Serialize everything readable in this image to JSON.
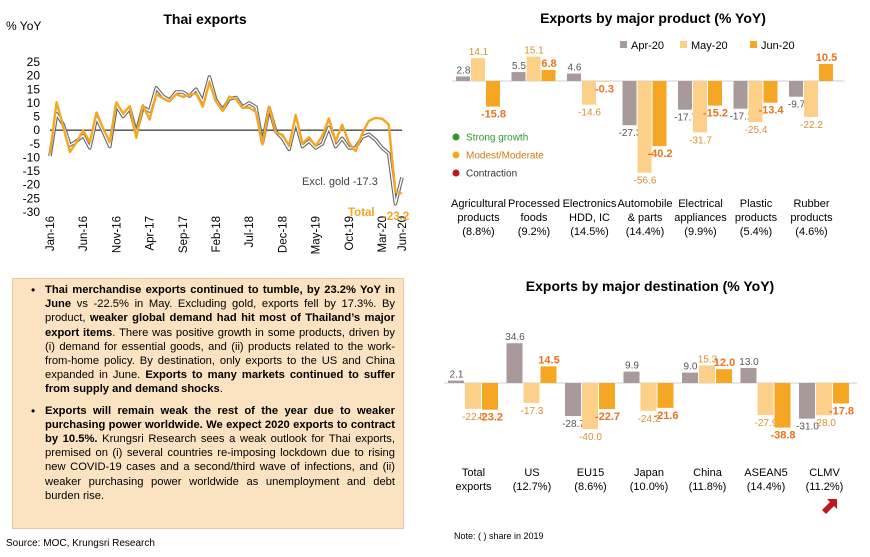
{
  "chart_data": [
    {
      "type": "line",
      "title": "Thai exports",
      "ylabel": "% YoY",
      "ylim": [
        -30,
        25
      ],
      "yticks": [
        25,
        20,
        15,
        10,
        5,
        0,
        -5,
        -10,
        -15,
        -20,
        -25,
        -30
      ],
      "xticks": [
        "Jan-16",
        "Jun-16",
        "Nov-16",
        "Apr-17",
        "Sep-17",
        "Feb-18",
        "Jul-18",
        "Dec-18",
        "May-19",
        "Oct-19",
        "Mar-20",
        "Jun-20"
      ],
      "x": [
        "Jan-16",
        "Feb-16",
        "Mar-16",
        "Apr-16",
        "May-16",
        "Jun-16",
        "Jul-16",
        "Aug-16",
        "Sep-16",
        "Oct-16",
        "Nov-16",
        "Dec-16",
        "Jan-17",
        "Feb-17",
        "Mar-17",
        "Apr-17",
        "May-17",
        "Jun-17",
        "Jul-17",
        "Aug-17",
        "Sep-17",
        "Oct-17",
        "Nov-17",
        "Dec-17",
        "Jan-18",
        "Feb-18",
        "Mar-18",
        "Apr-18",
        "May-18",
        "Jun-18",
        "Jul-18",
        "Aug-18",
        "Sep-18",
        "Oct-18",
        "Nov-18",
        "Dec-18",
        "Jan-19",
        "Feb-19",
        "Mar-19",
        "Apr-19",
        "May-19",
        "Jun-19",
        "Jul-19",
        "Aug-19",
        "Sep-19",
        "Oct-19",
        "Nov-19",
        "Dec-19",
        "Jan-20",
        "Feb-20",
        "Mar-20",
        "Apr-20",
        "May-20",
        "Jun-20"
      ],
      "series": [
        {
          "name": "Total",
          "color": "#f5a623",
          "values": [
            -8.9,
            10.3,
            1.1,
            -8.0,
            -4.4,
            -0.1,
            -4.4,
            6.5,
            0.7,
            -4.3,
            10.2,
            6.1,
            8.8,
            -2.8,
            9.2,
            3.9,
            13.2,
            11.7,
            10.5,
            13.2,
            12.2,
            13.0,
            13.4,
            8.6,
            17.6,
            10.5,
            7.1,
            12.3,
            11.4,
            8.2,
            8.3,
            6.7,
            -5.2,
            8.7,
            -0.9,
            -1.7,
            -5.7,
            5.6,
            -4.9,
            -2.6,
            -5.8,
            -2.1,
            4.3,
            -4.0,
            2.0,
            -4.5,
            -7.7,
            -1.3,
            3.4,
            4.5,
            4.2,
            2.1,
            -22.5,
            -23.2
          ]
        },
        {
          "name": "Excl. gold",
          "color": "#555555",
          "values": [
            -9.5,
            6.0,
            2.0,
            -5.5,
            -4.0,
            -2.0,
            -6.5,
            4.5,
            -0.5,
            -6.0,
            9.0,
            5.0,
            8.0,
            -1.0,
            8.5,
            7.0,
            15.5,
            12.5,
            11.0,
            14.0,
            14.0,
            12.5,
            15.0,
            10.5,
            19.5,
            11.0,
            7.5,
            11.5,
            12.0,
            8.5,
            10.0,
            8.5,
            -4.5,
            8.0,
            -0.5,
            -3.0,
            -7.0,
            3.0,
            -6.0,
            -4.0,
            -6.5,
            -5.0,
            1.0,
            -6.0,
            -3.0,
            -6.5,
            -6.5,
            -2.5,
            -1.5,
            -3.5,
            -6.5,
            -8.5,
            -27.0,
            -17.3
          ]
        }
      ],
      "annotations": [
        {
          "label": "Excl. gold -17.3",
          "color": "#404040"
        },
        {
          "label": "Total",
          "value": "-23.2",
          "color": "#f5a623"
        }
      ]
    },
    {
      "type": "bar",
      "title": "Exports by major product (% YoY)",
      "legend": {
        "position": "top-right"
      },
      "categories": [
        "Agricultural products (8.8%)",
        "Processed foods (9.2%)",
        "Electronics HDD, IC (14.5%)",
        "Automobile & parts (14.4%)",
        "Electrical appliances (9.9%)",
        "Plastic products (5.4%)",
        "Rubber products (4.6%)"
      ],
      "category_lines": [
        [
          "Agricultural",
          "products",
          "(8.8%)"
        ],
        [
          "Processed",
          "foods",
          "(9.2%)"
        ],
        [
          "Electronics",
          "HDD, IC",
          "(14.5%)"
        ],
        [
          "Automobile",
          "& parts",
          "(14.4%)"
        ],
        [
          "Electrical",
          "appliances",
          "(9.9%)"
        ],
        [
          "Plastic",
          "products",
          "(5.4%)"
        ],
        [
          "Rubber",
          "products",
          "(4.6%)"
        ]
      ],
      "series": [
        {
          "name": "Apr-20",
          "color": "#a89a9a",
          "values": [
            2.8,
            5.5,
            4.6,
            -27.3,
            -17.7,
            -17.1,
            -9.7
          ],
          "labels": [
            "2.8",
            "5.5",
            "4.6",
            "-27.3",
            "-17.7",
            "-17.1",
            "-9.7"
          ]
        },
        {
          "name": "May-20",
          "color": "#fdd08a",
          "values": [
            14.1,
            15.1,
            -14.6,
            -56.6,
            -31.7,
            -25.4,
            -22.2
          ],
          "labels": [
            "14.1",
            "15.1",
            "-14.6",
            "-56.6",
            "-31.7",
            "-25.4",
            "-22.2"
          ]
        },
        {
          "name": "Jun-20",
          "color": "#f5a623",
          "values": [
            -15.8,
            6.8,
            -0.3,
            -40.2,
            -15.2,
            -13.4,
            10.5
          ],
          "labels": [
            "-15.8",
            "6.8",
            "-0.3",
            "-40.2",
            "-15.2",
            "-13.4",
            "10.5"
          ]
        }
      ],
      "status_legend": [
        {
          "label": "Strong growth",
          "color": "#2e9a2e"
        },
        {
          "label": "Modest/Moderate",
          "color": "#f5a623"
        },
        {
          "label": "Contraction",
          "color": "#c0171f"
        }
      ]
    },
    {
      "type": "bar",
      "title": "Exports by major destination (% YoY)",
      "categories": [
        "Total exports",
        "US (12.7%)",
        "EU15 (8.6%)",
        "Japan (10.0%)",
        "China (11.8%)",
        "ASEAN5 (14.4%)",
        "CLMV (11.2%)"
      ],
      "category_lines": [
        [
          "Total",
          "exports"
        ],
        [
          "US",
          "(12.7%)"
        ],
        [
          "EU15",
          "(8.6%)"
        ],
        [
          "Japan",
          "(10.0%)"
        ],
        [
          "China",
          "(11.8%)"
        ],
        [
          "ASEAN5",
          "(14.4%)"
        ],
        [
          "CLMV",
          "(11.2%)"
        ]
      ],
      "series": [
        {
          "name": "Apr-20",
          "color": "#a89a9a",
          "values": [
            2.1,
            34.6,
            -28.7,
            9.9,
            9.0,
            13.0,
            -31.0
          ],
          "labels": [
            "2.1",
            "34.6",
            "-28.7",
            "9.9",
            "9.0",
            "13.0",
            "-31.0"
          ]
        },
        {
          "name": "May-20",
          "color": "#fdd08a",
          "values": [
            -22.5,
            -17.3,
            -40.0,
            -24.2,
            15.3,
            -27.9,
            -28.0
          ],
          "labels": [
            "-22.5",
            "-17.3",
            "-40.0",
            "-24.2",
            "15.3",
            "-27.9",
            "-28.0"
          ]
        },
        {
          "name": "Jun-20",
          "color": "#f5a623",
          "values": [
            -23.2,
            14.5,
            -22.7,
            -21.6,
            12.0,
            -38.8,
            -17.8
          ],
          "labels": [
            "-23.2",
            "14.5",
            "-22.7",
            "-21.6",
            "12.0",
            "-38.8",
            "-17.8"
          ]
        }
      ],
      "marker_color": "#c0171f"
    }
  ],
  "summary": [
    {
      "parts": [
        {
          "t": "Thai merchandise exports continued to tumble, by 23.2% YoY in June",
          "b": true
        },
        {
          "t": " vs -22.5% in May. Excluding gold, exports fell by 17.3%. By product, ",
          "b": false
        },
        {
          "t": "weaker global demand had hit most of Thailand’s major export items",
          "b": true
        },
        {
          "t": ". There was positive growth in some products, driven by (i) demand for essential goods, and (ii) products related to the work-from-home policy. By destination, only exports to the US and China expanded in June. ",
          "b": false
        },
        {
          "t": "Exports to many markets continued to suffer from supply and demand shocks",
          "b": true
        },
        {
          "t": ".",
          "b": false
        }
      ]
    },
    {
      "parts": [
        {
          "t": "Exports will remain weak the rest of the year due to weaker purchasing power worldwide. We expect 2020 exports to contract by 10.5%.",
          "b": true
        },
        {
          "t": " Krungsri Research sees a weak outlook for Thai exports, premised on (i) several countries re-imposing lockdown due to rising new COVID-19 cases and a second/third wave of infections, and (ii) weaker purchasing power worldwide as unemployment and debt burden rise.",
          "b": false
        }
      ]
    }
  ],
  "source": "Source: MOC, Krungsri Research",
  "note": "Note: ( ) share in 2019"
}
